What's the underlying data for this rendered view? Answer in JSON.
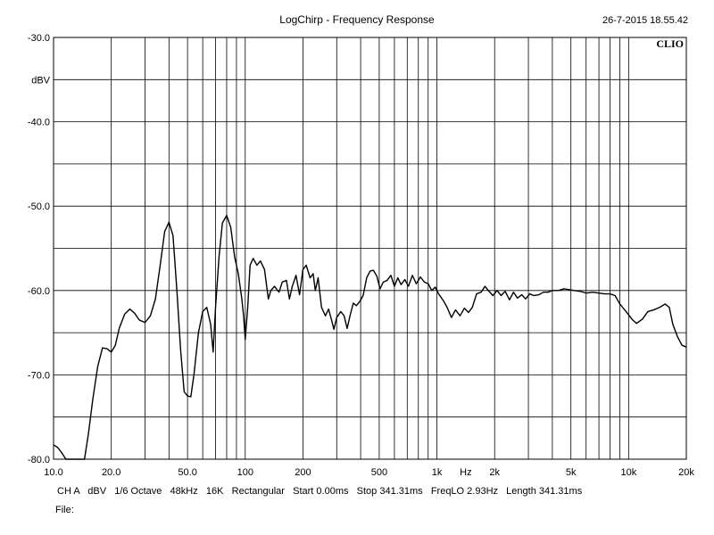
{
  "header": {
    "title": "LogChirp - Frequency Response",
    "timestamp": "26-7-2015 18.55.42",
    "brand": "CLIO"
  },
  "footer": {
    "settings": "CH A   dBV   1/6 Octave   48kHz   16K   Rectangular   Start 0.00ms   Stop 341.31ms   FreqLO 2.93Hz   Length 341.31ms",
    "file_label": "File:"
  },
  "chart_data": {
    "type": "line",
    "title": "LogChirp - Frequency Response",
    "xscale": "log",
    "xlim": [
      10,
      20000
    ],
    "ylim": [
      -80,
      -30
    ],
    "ylabel": "dBV",
    "xlabel": "Hz",
    "grid": true,
    "x_tick_labels": [
      {
        "v": 10,
        "label": "10.0"
      },
      {
        "v": 20,
        "label": "20.0"
      },
      {
        "v": 50,
        "label": "50.0"
      },
      {
        "v": 100,
        "label": "100"
      },
      {
        "v": 200,
        "label": "200"
      },
      {
        "v": 500,
        "label": "500"
      },
      {
        "v": 1000,
        "label": "1k"
      },
      {
        "v": 1414,
        "label": "Hz"
      },
      {
        "v": 2000,
        "label": "2k"
      },
      {
        "v": 5000,
        "label": "5k"
      },
      {
        "v": 10000,
        "label": "10k"
      },
      {
        "v": 20000,
        "label": "20k"
      }
    ],
    "y_tick_labels": [
      {
        "v": -30,
        "label": "-30.0"
      },
      {
        "v": -35,
        "label": "dBV"
      },
      {
        "v": -40,
        "label": "-40.0"
      },
      {
        "v": -50,
        "label": "-50.0"
      },
      {
        "v": -60,
        "label": "-60.0"
      },
      {
        "v": -70,
        "label": "-70.0"
      },
      {
        "v": -80,
        "label": "-80.0"
      }
    ],
    "series": [
      {
        "color": "#000000",
        "points": [
          [
            10,
            -78.3
          ],
          [
            10.5,
            -78.6
          ],
          [
            11,
            -79.2
          ],
          [
            11.6,
            -80
          ],
          [
            14.5,
            -80
          ],
          [
            15.2,
            -77
          ],
          [
            16,
            -73
          ],
          [
            17,
            -69
          ],
          [
            18,
            -66.8
          ],
          [
            19,
            -66.9
          ],
          [
            20,
            -67.3
          ],
          [
            21,
            -66.5
          ],
          [
            22,
            -64.5
          ],
          [
            23.5,
            -62.8
          ],
          [
            25,
            -62.2
          ],
          [
            26.5,
            -62.7
          ],
          [
            28,
            -63.5
          ],
          [
            30,
            -63.8
          ],
          [
            32,
            -63
          ],
          [
            34,
            -61
          ],
          [
            36,
            -57
          ],
          [
            38,
            -53
          ],
          [
            40,
            -51.9
          ],
          [
            42,
            -53.5
          ],
          [
            44,
            -60
          ],
          [
            46,
            -67
          ],
          [
            48,
            -72
          ],
          [
            50,
            -72.5
          ],
          [
            52,
            -72.6
          ],
          [
            54,
            -70
          ],
          [
            57,
            -65
          ],
          [
            60,
            -62.5
          ],
          [
            63,
            -62
          ],
          [
            66,
            -64
          ],
          [
            68,
            -67.3
          ],
          [
            70,
            -62
          ],
          [
            73,
            -56
          ],
          [
            76,
            -52
          ],
          [
            80,
            -51.1
          ],
          [
            84,
            -52.5
          ],
          [
            88,
            -56
          ],
          [
            92,
            -58
          ],
          [
            96,
            -61
          ],
          [
            98,
            -63
          ],
          [
            100,
            -65.8
          ],
          [
            103,
            -62
          ],
          [
            106,
            -57
          ],
          [
            110,
            -56.2
          ],
          [
            115,
            -57
          ],
          [
            120,
            -56.5
          ],
          [
            126,
            -57.5
          ],
          [
            132,
            -61
          ],
          [
            136,
            -60
          ],
          [
            142,
            -59.5
          ],
          [
            150,
            -60.2
          ],
          [
            156,
            -59
          ],
          [
            164,
            -58.8
          ],
          [
            170,
            -61
          ],
          [
            176,
            -59.5
          ],
          [
            184,
            -58.2
          ],
          [
            192,
            -60.5
          ],
          [
            200,
            -57.5
          ],
          [
            208,
            -57
          ],
          [
            218,
            -58.5
          ],
          [
            226,
            -58
          ],
          [
            232,
            -60
          ],
          [
            240,
            -58.5
          ],
          [
            250,
            -62
          ],
          [
            262,
            -63
          ],
          [
            272,
            -62.2
          ],
          [
            282,
            -63.5
          ],
          [
            290,
            -64.6
          ],
          [
            300,
            -63.2
          ],
          [
            315,
            -62.5
          ],
          [
            328,
            -63
          ],
          [
            340,
            -64.5
          ],
          [
            352,
            -63
          ],
          [
            366,
            -61.5
          ],
          [
            380,
            -61.8
          ],
          [
            396,
            -61.3
          ],
          [
            412,
            -60.6
          ],
          [
            430,
            -58.5
          ],
          [
            448,
            -57.7
          ],
          [
            466,
            -57.6
          ],
          [
            486,
            -58.3
          ],
          [
            505,
            -59.8
          ],
          [
            525,
            -59
          ],
          [
            550,
            -58.8
          ],
          [
            575,
            -58.2
          ],
          [
            600,
            -59.5
          ],
          [
            625,
            -58.5
          ],
          [
            650,
            -59.3
          ],
          [
            680,
            -58.7
          ],
          [
            710,
            -59.5
          ],
          [
            745,
            -58.2
          ],
          [
            780,
            -59.2
          ],
          [
            820,
            -58.4
          ],
          [
            860,
            -59
          ],
          [
            900,
            -59.2
          ],
          [
            940,
            -60
          ],
          [
            980,
            -59.6
          ],
          [
            1020,
            -60.4
          ],
          [
            1080,
            -61.2
          ],
          [
            1130,
            -62
          ],
          [
            1190,
            -63.2
          ],
          [
            1250,
            -62.3
          ],
          [
            1320,
            -63
          ],
          [
            1390,
            -62.1
          ],
          [
            1460,
            -62.6
          ],
          [
            1530,
            -62
          ],
          [
            1610,
            -60.4
          ],
          [
            1700,
            -60.2
          ],
          [
            1780,
            -59.5
          ],
          [
            1870,
            -60.1
          ],
          [
            1960,
            -60.6
          ],
          [
            2060,
            -60
          ],
          [
            2160,
            -60.6
          ],
          [
            2270,
            -60.1
          ],
          [
            2390,
            -61.1
          ],
          [
            2510,
            -60.2
          ],
          [
            2630,
            -60.9
          ],
          [
            2770,
            -60.5
          ],
          [
            2900,
            -61
          ],
          [
            3050,
            -60.4
          ],
          [
            3200,
            -60.6
          ],
          [
            3400,
            -60.5
          ],
          [
            3600,
            -60.2
          ],
          [
            3800,
            -60.2
          ],
          [
            4000,
            -60
          ],
          [
            4300,
            -60
          ],
          [
            4600,
            -59.8
          ],
          [
            4900,
            -59.9
          ],
          [
            5200,
            -60
          ],
          [
            5600,
            -60.1
          ],
          [
            6000,
            -60.3
          ],
          [
            6500,
            -60.2
          ],
          [
            7000,
            -60.3
          ],
          [
            7500,
            -60.4
          ],
          [
            8000,
            -60.4
          ],
          [
            8500,
            -60.6
          ],
          [
            9000,
            -61.6
          ],
          [
            9700,
            -62.5
          ],
          [
            10500,
            -63.5
          ],
          [
            11000,
            -63.9
          ],
          [
            11800,
            -63.4
          ],
          [
            12600,
            -62.5
          ],
          [
            13500,
            -62.3
          ],
          [
            14500,
            -62
          ],
          [
            15500,
            -61.6
          ],
          [
            16300,
            -62
          ],
          [
            17000,
            -64
          ],
          [
            18000,
            -65.5
          ],
          [
            19000,
            -66.5
          ],
          [
            20000,
            -66.7
          ]
        ]
      }
    ]
  }
}
